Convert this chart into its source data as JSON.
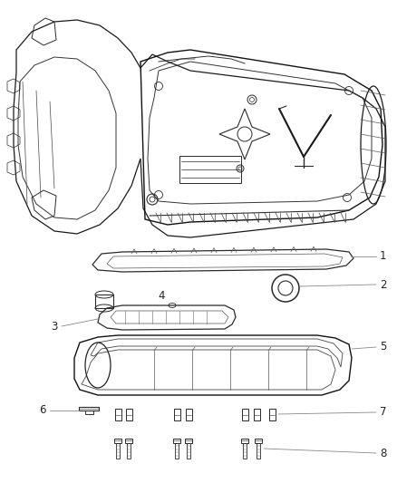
{
  "bg_color": "#ffffff",
  "line_color": "#2a2a2a",
  "label_color": "#222222",
  "callout_color": "#888888",
  "fig_width": 4.38,
  "fig_height": 5.33,
  "dpi": 100
}
